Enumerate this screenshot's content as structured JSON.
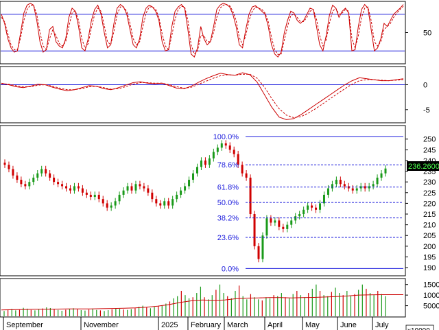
{
  "colors": {
    "up": "#1a9a1a",
    "down": "#d00000",
    "level": "#1a1adc",
    "frame": "#000000",
    "osc_main": "#cc0000",
    "osc_signal": "#cc0000",
    "price_tag_bg": "#000000",
    "price_tag_fg": "#4dff4d"
  },
  "chart_data": [
    {
      "type": "line",
      "title": "",
      "ylim": [
        0,
        100
      ],
      "ticks": [
        50
      ],
      "levels": [
        20,
        80
      ],
      "main": [
        80,
        65,
        40,
        25,
        18,
        20,
        50,
        82,
        95,
        98,
        95,
        70,
        35,
        18,
        22,
        55,
        60,
        35,
        28,
        25,
        40,
        75,
        90,
        85,
        60,
        25,
        20,
        40,
        70,
        88,
        95,
        80,
        50,
        25,
        30,
        65,
        90,
        96,
        92,
        80,
        55,
        30,
        25,
        40,
        75,
        90,
        95,
        92,
        85,
        70,
        35,
        20,
        22,
        60,
        85,
        92,
        96,
        90,
        55,
        15,
        10,
        25,
        60,
        40,
        30,
        35,
        60,
        88,
        95,
        98,
        96,
        92,
        80,
        60,
        30,
        25,
        55,
        80,
        92,
        94,
        90,
        85,
        80,
        60,
        30,
        15,
        10,
        18,
        50,
        70,
        85,
        82,
        70,
        65,
        70,
        80,
        90,
        88,
        60,
        30,
        20,
        45,
        78,
        95,
        90,
        75,
        85,
        90,
        82,
        20,
        22,
        60,
        88,
        96,
        90,
        55,
        20,
        25,
        40,
        65,
        60,
        70,
        80,
        85,
        90,
        96
      ],
      "signal": [
        75,
        68,
        48,
        30,
        22,
        22,
        42,
        70,
        88,
        95,
        95,
        80,
        50,
        28,
        22,
        40,
        55,
        45,
        32,
        28,
        35,
        60,
        82,
        86,
        70,
        40,
        25,
        32,
        58,
        80,
        90,
        85,
        62,
        35,
        30,
        52,
        80,
        92,
        92,
        85,
        65,
        40,
        30,
        35,
        60,
        82,
        92,
        92,
        88,
        75,
        48,
        28,
        22,
        45,
        72,
        88,
        93,
        92,
        70,
        30,
        15,
        20,
        45,
        45,
        35,
        35,
        50,
        75,
        90,
        95,
        96,
        94,
        85,
        70,
        42,
        30,
        45,
        70,
        85,
        92,
        90,
        88,
        82,
        68,
        42,
        22,
        14,
        15,
        38,
        60,
        78,
        80,
        75,
        68,
        68,
        75,
        85,
        88,
        72,
        45,
        28,
        38,
        65,
        85,
        90,
        80,
        82,
        88,
        85,
        40,
        25,
        45,
        75,
        90,
        92,
        70,
        35,
        28,
        35,
        55,
        60,
        65,
        75,
        82,
        88,
        93
      ]
    },
    {
      "type": "line",
      "title": "",
      "ylim": [
        -7.5,
        3.5
      ],
      "ticks": [
        0,
        -5
      ],
      "levels": [
        0
      ],
      "main": [
        0.3,
        0.0,
        -0.4,
        -0.6,
        -0.3,
        0.1,
        0.0,
        -0.5,
        -0.9,
        -1.2,
        -1.0,
        -0.6,
        -0.2,
        -0.3,
        -0.8,
        -1.0,
        -0.6,
        -0.1,
        0.4,
        0.6,
        0.3,
        0.2,
        0.3,
        -0.2,
        -0.7,
        -0.8,
        -0.3,
        0.5,
        1.2,
        1.8,
        2.3,
        2.0,
        1.9,
        2.4,
        2.0,
        0.5,
        -2.0,
        -4.5,
        -6.5,
        -7.0,
        -6.8,
        -6.0,
        -5.0,
        -4.0,
        -3.0,
        -2.0,
        -1.0,
        0.0,
        0.8,
        1.4,
        1.2,
        1.0,
        0.8,
        0.8,
        1.0,
        1.2
      ],
      "signal": [
        0.2,
        0.1,
        -0.2,
        -0.4,
        -0.4,
        -0.1,
        0.0,
        -0.3,
        -0.7,
        -1.0,
        -1.0,
        -0.8,
        -0.4,
        -0.3,
        -0.6,
        -0.9,
        -0.8,
        -0.4,
        0.1,
        0.4,
        0.4,
        0.3,
        0.3,
        0.0,
        -0.4,
        -0.7,
        -0.5,
        0.1,
        0.7,
        1.3,
        1.8,
        2.0,
        1.9,
        2.1,
        2.1,
        1.3,
        -0.5,
        -2.8,
        -4.8,
        -6.1,
        -6.6,
        -6.4,
        -5.7,
        -4.8,
        -3.8,
        -2.8,
        -1.8,
        -0.8,
        0.1,
        0.8,
        1.0,
        1.0,
        0.9,
        0.8,
        0.9,
        1.0
      ]
    },
    {
      "type": "candlestick",
      "title": "",
      "ylim": [
        186.5,
        256
      ],
      "ticks": [
        190,
        195,
        200,
        205,
        210,
        215,
        220,
        225,
        230,
        235,
        240,
        245,
        250
      ],
      "last_price_label": "236.2600",
      "last_price": 236.26,
      "fibonacci": [
        {
          "label": "100.0%",
          "value": 251.2
        },
        {
          "label": "78.6%",
          "value": 238.0
        },
        {
          "label": "61.8%",
          "value": 227.6
        },
        {
          "label": "50.0%",
          "value": 220.4
        },
        {
          "label": "38.2%",
          "value": 213.2
        },
        {
          "label": "23.6%",
          "value": 204.1
        },
        {
          "label": "0.0%",
          "value": 189.6
        }
      ],
      "closes": [
        238,
        236,
        233,
        231,
        229,
        228,
        230,
        232,
        234,
        236,
        234,
        232,
        230,
        229,
        228,
        227,
        226,
        228,
        227,
        225,
        224,
        223,
        224,
        222,
        220,
        218,
        219,
        221,
        224,
        226,
        228,
        226,
        229,
        228,
        227,
        225,
        222,
        220,
        219,
        221,
        219,
        222,
        224,
        226,
        228,
        231,
        234,
        237,
        240,
        238,
        241,
        244,
        246,
        248,
        247,
        245,
        243,
        238,
        234,
        232,
        215,
        200,
        194,
        205,
        213,
        211,
        212,
        209,
        208,
        210,
        212,
        214,
        215,
        217,
        219,
        218,
        217,
        220,
        224,
        227,
        229,
        231,
        229,
        228,
        227,
        226,
        227,
        228,
        227,
        228,
        229,
        232,
        234,
        236.26
      ],
      "price_axis_ticks": []
    },
    {
      "type": "bar",
      "title": "",
      "ylim": [
        0,
        17500
      ],
      "ticks": [
        15000,
        10000,
        5000
      ],
      "unit_label": "x10000",
      "values": [
        2500,
        3000,
        3500,
        2800,
        3200,
        4000,
        3600,
        3000,
        2800,
        3300,
        3700,
        4200,
        3900,
        3500,
        3000,
        2600,
        3100,
        3400,
        3800,
        3300,
        2900,
        2700,
        3200,
        3600,
        3000,
        2800,
        2500,
        2900,
        3300,
        3700,
        3500,
        3200,
        3000,
        3400,
        3800,
        4500,
        5000,
        4200,
        3800,
        4400,
        4800,
        5200,
        6000,
        7000,
        8500,
        9500,
        12000,
        10000,
        8500,
        9000,
        11000,
        14000,
        9000,
        8000,
        10000,
        12500,
        15000,
        11000,
        9500,
        8500,
        12000,
        14500,
        9500,
        8000,
        10500,
        9000,
        8000,
        7500,
        9000,
        8500,
        10000,
        9500,
        11000,
        9000,
        8500,
        10500,
        12000,
        10000,
        9000,
        11000,
        13000,
        15000,
        12000,
        10000,
        9500,
        11500,
        13500,
        11000,
        10000,
        12000,
        9500,
        10500,
        12500,
        15000,
        13000,
        11000,
        10000,
        12000,
        10500,
        9500
      ],
      "avg": [
        3000,
        3100,
        3200,
        3300,
        3300,
        3400,
        3500,
        3500,
        3500,
        3600,
        3700,
        3800,
        4000,
        4300,
        4800,
        5500,
        6500,
        7300,
        7700,
        7500,
        7700,
        8300,
        8600,
        8700,
        8800,
        8800,
        8700,
        8800,
        8900,
        9100,
        9300,
        9600,
        10000,
        10100,
        10200,
        10200,
        10200
      ]
    }
  ],
  "x_axis": {
    "months": [
      "September",
      "November",
      "2025",
      "February",
      "March",
      "April",
      "May",
      "June",
      "July"
    ]
  }
}
